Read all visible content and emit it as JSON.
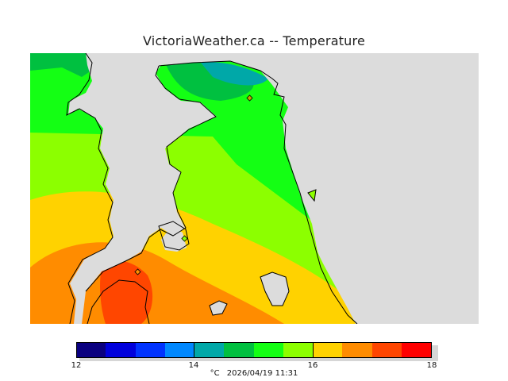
{
  "title": "VictoriaWeather.ca -- Temperature",
  "colorbar": {
    "colors": [
      "#0a0080",
      "#0000dc",
      "#0033ff",
      "#0088ff",
      "#00a8a8",
      "#00c040",
      "#14ff14",
      "#8cff00",
      "#ffd200",
      "#ff8c00",
      "#ff4600",
      "#ff0000"
    ],
    "tick_labels": [
      "12",
      "14",
      "16",
      "18"
    ]
  },
  "footer": {
    "unit": "°C",
    "timestamp": "2026/04/19 11:31"
  }
}
